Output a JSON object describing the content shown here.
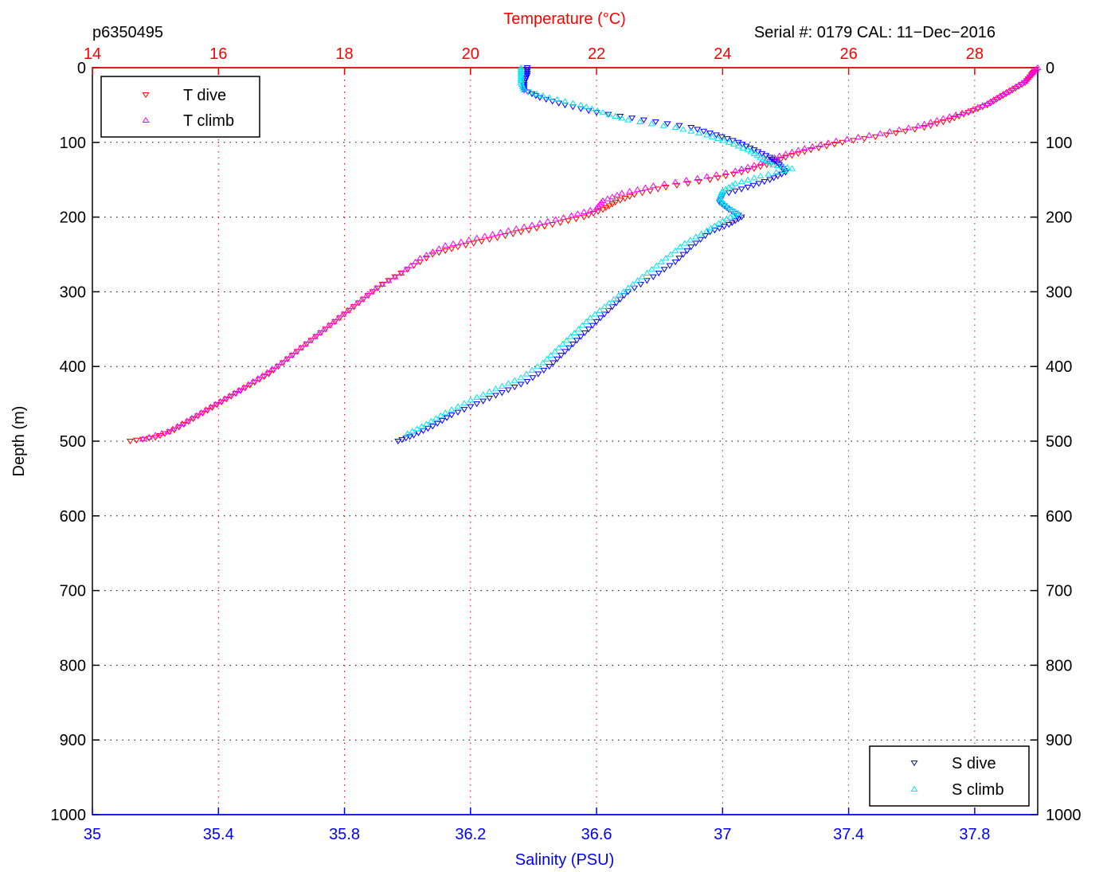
{
  "chart_data": {
    "type": "scatter",
    "profile_id": "p6350495",
    "serial_text": "Serial #: 0179  CAL: 11−Dec−2016",
    "top_xlabel": "Temperature (°C)",
    "bottom_xlabel": "Salinity (PSU)",
    "ylabel": "Depth (m)",
    "temperature_xlim": [
      14,
      29
    ],
    "salinity_xlim": [
      35,
      38
    ],
    "depth_ylim": [
      0,
      1000
    ],
    "temperature_ticks": [
      "14",
      "16",
      "18",
      "20",
      "22",
      "24",
      "26",
      "28"
    ],
    "salinity_ticks": [
      "35",
      "35.4",
      "35.8",
      "36.2",
      "36.6",
      "37",
      "37.4",
      "37.8"
    ],
    "depth_ticks": [
      "0",
      "100",
      "200",
      "300",
      "400",
      "500",
      "600",
      "700",
      "800",
      "900",
      "1000"
    ],
    "grid": true,
    "colors": {
      "t_dive": "#ff0000",
      "t_climb": "#ff00ff",
      "s_dive": "#0000ff",
      "s_climb": "#00e5ee",
      "temperature_axis": "#ff0000",
      "salinity_axis": "#0000ff",
      "black": "#000000"
    },
    "legend_top": {
      "placement": "top-left",
      "entries": [
        {
          "label": "T dive",
          "series": "t_dive"
        },
        {
          "label": "T climb",
          "series": "t_climb"
        }
      ]
    },
    "legend_bottom": {
      "placement": "bottom-right",
      "entries": [
        {
          "label": "S dive",
          "series": "s_dive"
        },
        {
          "label": "S climb",
          "series": "s_climb"
        }
      ]
    },
    "series": {
      "t_dive": {
        "axis": "temperature",
        "marker": "triangle-down",
        "points": [
          [
            28.95,
            5
          ],
          [
            28.9,
            10
          ],
          [
            28.8,
            20
          ],
          [
            28.6,
            30
          ],
          [
            28.4,
            40
          ],
          [
            28.2,
            50
          ],
          [
            27.9,
            60
          ],
          [
            27.6,
            70
          ],
          [
            27.2,
            80
          ],
          [
            26.6,
            90
          ],
          [
            25.9,
            100
          ],
          [
            25.4,
            110
          ],
          [
            25.0,
            120
          ],
          [
            24.7,
            130
          ],
          [
            24.3,
            140
          ],
          [
            23.8,
            150
          ],
          [
            23.1,
            160
          ],
          [
            22.6,
            170
          ],
          [
            22.3,
            180
          ],
          [
            22.1,
            190
          ],
          [
            21.8,
            200
          ],
          [
            21.3,
            210
          ],
          [
            20.8,
            220
          ],
          [
            20.3,
            230
          ],
          [
            19.8,
            240
          ],
          [
            19.4,
            250
          ],
          [
            19.0,
            270
          ],
          [
            18.6,
            290
          ],
          [
            18.3,
            310
          ],
          [
            18.0,
            330
          ],
          [
            17.7,
            350
          ],
          [
            17.4,
            370
          ],
          [
            17.1,
            390
          ],
          [
            16.8,
            410
          ],
          [
            16.5,
            425
          ],
          [
            16.2,
            440
          ],
          [
            15.9,
            455
          ],
          [
            15.6,
            470
          ],
          [
            15.3,
            485
          ],
          [
            15.0,
            495
          ],
          [
            14.6,
            500
          ]
        ]
      },
      "t_climb": {
        "axis": "temperature",
        "marker": "triangle-up",
        "points": [
          [
            29.0,
            0
          ],
          [
            28.9,
            8
          ],
          [
            28.8,
            18
          ],
          [
            28.6,
            28
          ],
          [
            28.4,
            38
          ],
          [
            28.2,
            48
          ],
          [
            27.9,
            58
          ],
          [
            27.5,
            68
          ],
          [
            27.1,
            78
          ],
          [
            26.5,
            88
          ],
          [
            25.8,
            98
          ],
          [
            25.3,
            108
          ],
          [
            24.9,
            118
          ],
          [
            24.6,
            128
          ],
          [
            24.2,
            138
          ],
          [
            23.6,
            148
          ],
          [
            22.9,
            158
          ],
          [
            22.4,
            168
          ],
          [
            22.1,
            178
          ],
          [
            22.0,
            188
          ],
          [
            21.6,
            198
          ],
          [
            21.1,
            208
          ],
          [
            20.6,
            218
          ],
          [
            20.1,
            228
          ],
          [
            19.6,
            238
          ],
          [
            19.2,
            255
          ],
          [
            18.9,
            275
          ],
          [
            18.5,
            295
          ],
          [
            18.2,
            315
          ],
          [
            17.9,
            335
          ],
          [
            17.6,
            355
          ],
          [
            17.3,
            375
          ],
          [
            17.0,
            395
          ],
          [
            16.7,
            412
          ],
          [
            16.4,
            428
          ],
          [
            16.1,
            443
          ],
          [
            15.8,
            458
          ],
          [
            15.5,
            473
          ],
          [
            15.2,
            487
          ],
          [
            14.8,
            497
          ]
        ]
      },
      "s_dive": {
        "axis": "salinity",
        "marker": "triangle-down",
        "points": [
          [
            36.38,
            0
          ],
          [
            36.38,
            10
          ],
          [
            36.37,
            20
          ],
          [
            36.37,
            30
          ],
          [
            36.42,
            40
          ],
          [
            36.5,
            50
          ],
          [
            36.6,
            60
          ],
          [
            36.75,
            70
          ],
          [
            36.9,
            80
          ],
          [
            36.98,
            90
          ],
          [
            37.05,
            100
          ],
          [
            37.1,
            110
          ],
          [
            37.15,
            120
          ],
          [
            37.18,
            130
          ],
          [
            37.2,
            140
          ],
          [
            37.15,
            150
          ],
          [
            37.08,
            160
          ],
          [
            37.0,
            170
          ],
          [
            36.99,
            180
          ],
          [
            37.02,
            190
          ],
          [
            37.06,
            200
          ],
          [
            37.02,
            210
          ],
          [
            36.96,
            220
          ],
          [
            36.9,
            240
          ],
          [
            36.85,
            260
          ],
          [
            36.78,
            280
          ],
          [
            36.7,
            300
          ],
          [
            36.65,
            320
          ],
          [
            36.6,
            340
          ],
          [
            36.55,
            360
          ],
          [
            36.5,
            380
          ],
          [
            36.45,
            400
          ],
          [
            36.38,
            420
          ],
          [
            36.3,
            435
          ],
          [
            36.22,
            450
          ],
          [
            36.14,
            465
          ],
          [
            36.08,
            480
          ],
          [
            36.02,
            492
          ],
          [
            35.97,
            500
          ]
        ]
      },
      "s_climb": {
        "axis": "salinity",
        "marker": "triangle-up",
        "points": [
          [
            36.36,
            0
          ],
          [
            36.36,
            10
          ],
          [
            36.36,
            20
          ],
          [
            36.37,
            30
          ],
          [
            36.45,
            40
          ],
          [
            36.55,
            50
          ],
          [
            36.62,
            60
          ],
          [
            36.7,
            70
          ],
          [
            36.85,
            80
          ],
          [
            36.95,
            90
          ],
          [
            37.02,
            100
          ],
          [
            37.08,
            110
          ],
          [
            37.12,
            120
          ],
          [
            37.16,
            130
          ],
          [
            37.22,
            135
          ],
          [
            37.12,
            145
          ],
          [
            37.04,
            155
          ],
          [
            37.0,
            165
          ],
          [
            36.99,
            175
          ],
          [
            37.01,
            185
          ],
          [
            37.05,
            195
          ],
          [
            37.0,
            205
          ],
          [
            36.95,
            218
          ],
          [
            36.88,
            235
          ],
          [
            36.82,
            255
          ],
          [
            36.76,
            275
          ],
          [
            36.7,
            295
          ],
          [
            36.64,
            315
          ],
          [
            36.58,
            335
          ],
          [
            36.53,
            355
          ],
          [
            36.48,
            375
          ],
          [
            36.43,
            395
          ],
          [
            36.36,
            415
          ],
          [
            36.28,
            430
          ],
          [
            36.2,
            445
          ],
          [
            36.12,
            462
          ],
          [
            36.06,
            477
          ],
          [
            36.0,
            490
          ]
        ]
      }
    }
  }
}
